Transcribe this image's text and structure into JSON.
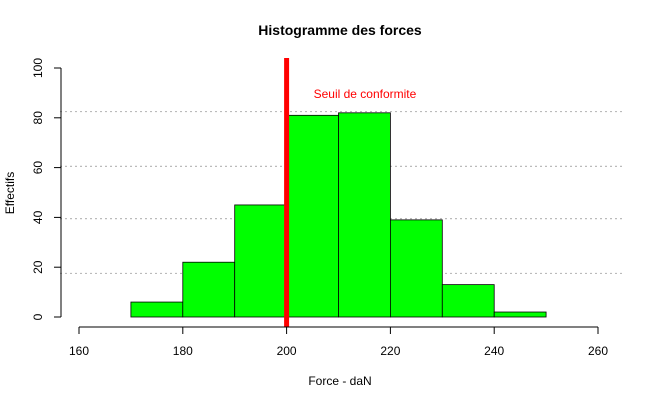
{
  "chart_data": {
    "type": "bar",
    "title": "Histogramme des forces",
    "xlabel": "Force - daN",
    "ylabel": "Effectifs",
    "xlim": [
      160,
      260
    ],
    "ylim": [
      0,
      100
    ],
    "x_ticks": [
      160,
      180,
      200,
      220,
      240,
      260
    ],
    "y_ticks": [
      0,
      20,
      40,
      60,
      80,
      100
    ],
    "bins": [
      {
        "from": 170,
        "to": 180,
        "count": 6
      },
      {
        "from": 180,
        "to": 190,
        "count": 22
      },
      {
        "from": 190,
        "to": 200,
        "count": 45
      },
      {
        "from": 200,
        "to": 210,
        "count": 81
      },
      {
        "from": 210,
        "to": 220,
        "count": 82
      },
      {
        "from": 220,
        "to": 230,
        "count": 39
      },
      {
        "from": 230,
        "to": 240,
        "count": 13
      },
      {
        "from": 240,
        "to": 250,
        "count": 2
      }
    ],
    "bar_color": "#00ff00",
    "grid_lines_y": [
      17.5,
      39.5,
      60.5,
      82.5
    ],
    "threshold": {
      "x": 200,
      "label": "Seuil de conformite",
      "color": "#ff0000"
    }
  }
}
